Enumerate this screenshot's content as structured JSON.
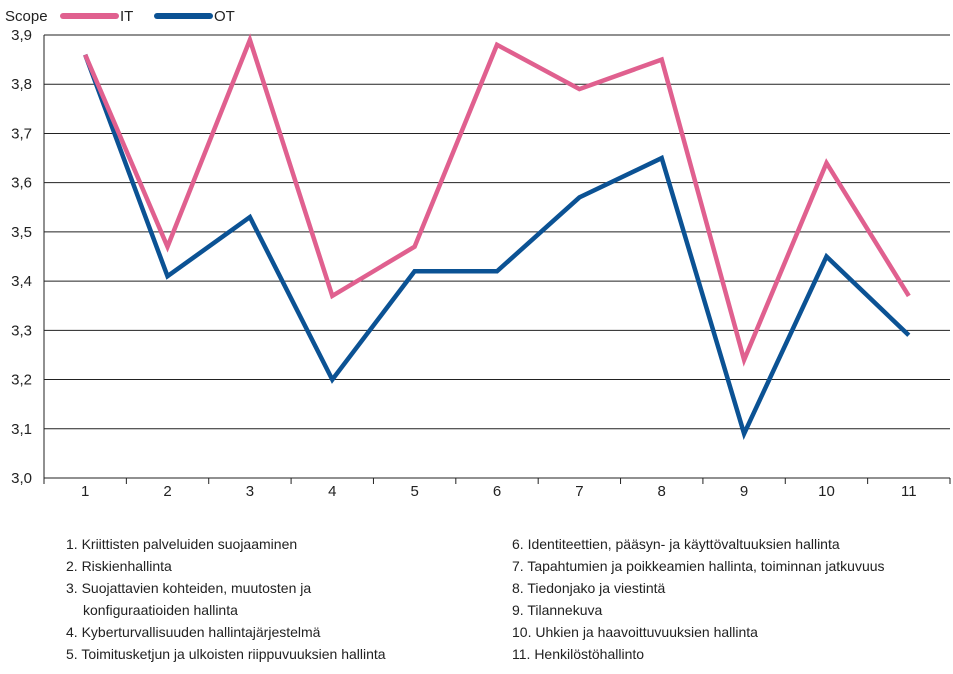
{
  "chart_data": {
    "type": "line",
    "ylabel": "Scope",
    "ylim": [
      3.0,
      3.9
    ],
    "yticks": [
      "3,0",
      "3,1",
      "3,2",
      "3,3",
      "3,4",
      "3,5",
      "3,6",
      "3,7",
      "3,8",
      "3,9"
    ],
    "categories": [
      "1",
      "2",
      "3",
      "4",
      "5",
      "6",
      "7",
      "8",
      "9",
      "10",
      "11"
    ],
    "grid": true,
    "legend_position": "top-left",
    "series": [
      {
        "name": "IT",
        "color": "#e0608f",
        "values": [
          3.86,
          3.47,
          3.89,
          3.37,
          3.47,
          3.88,
          3.79,
          3.85,
          3.24,
          3.64,
          3.37
        ]
      },
      {
        "name": "OT",
        "color": "#0b5294",
        "values": [
          3.86,
          3.41,
          3.53,
          3.2,
          3.42,
          3.42,
          3.57,
          3.65,
          3.09,
          3.45,
          3.29
        ]
      }
    ]
  },
  "notes_left": [
    "1. Kriittisten palveluiden suojaaminen",
    "2. Riskienhallinta",
    "3. Suojattavien kohteiden, muutosten ja",
    "konfiguraatioiden hallinta",
    "4. Kyberturvallisuuden hallintajärjestelmä",
    "5. Toimitusketjun ja ulkoisten riippuvuuksien hallinta"
  ],
  "notes_right": [
    "6. Identiteettien, pääsyn- ja käyttövaltuuksien hallinta",
    "7. Tapahtumien ja poikkeamien hallinta, toiminnan jatkuvuus",
    "8. Tiedonjako ja viestintä",
    "9. Tilannekuva",
    "10. Uhkien ja haavoittuvuuksien hallinta",
    "11. Henkilöstöhallinto"
  ]
}
